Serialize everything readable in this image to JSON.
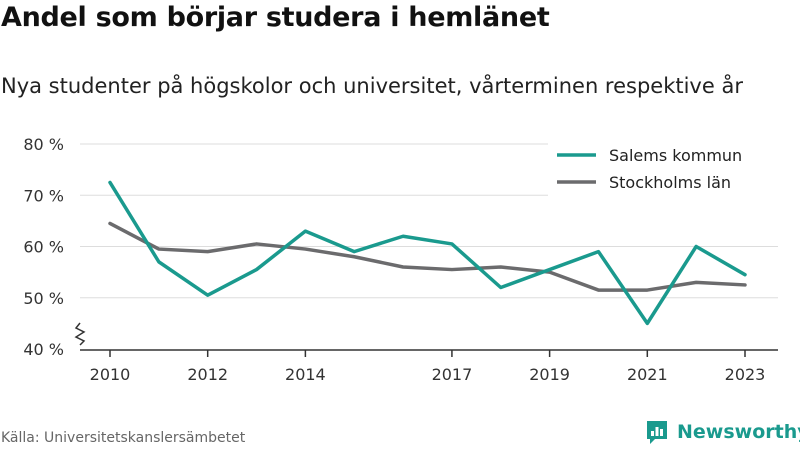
{
  "header": {
    "title": "Andel som börjar studera i hemlänet",
    "subtitle": "Nya studenter på högskolor och universitet, vårterminen respektive år"
  },
  "footer": {
    "source": "Källa: Universitetskanslersämbetet",
    "brand": "Newsworthy",
    "brand_icon": "newsworthy-logo-icon"
  },
  "colors": {
    "salem": "#1a9a8e",
    "stockholm": "#6b6b6d",
    "grid": "#dddddd",
    "axis": "#333333",
    "brand": "#1a9a8e"
  },
  "chart_data": {
    "type": "line",
    "x": [
      2010,
      2011,
      2012,
      2013,
      2014,
      2015,
      2016,
      2017,
      2018,
      2019,
      2020,
      2021,
      2022,
      2023
    ],
    "x_tick_labels": [
      "2010",
      "2012",
      "2014",
      "2017",
      "2019",
      "2021",
      "2023"
    ],
    "x_tick_values": [
      2010,
      2012,
      2014,
      2017,
      2019,
      2021,
      2023
    ],
    "y_tick_labels": [
      "80 %",
      "70 %",
      "60 %",
      "50 %",
      "40 %"
    ],
    "y_tick_values": [
      80,
      70,
      60,
      50,
      40
    ],
    "ylim": [
      40,
      80
    ],
    "y_axis_break": true,
    "grid": true,
    "legend_position": "top-right",
    "series": [
      {
        "name": "Salems kommun",
        "color": "#1a9a8e",
        "values": [
          72.5,
          57,
          50.5,
          55.5,
          63,
          59,
          62,
          60.5,
          52,
          55.5,
          59,
          45,
          60,
          54.5
        ]
      },
      {
        "name": "Stockholms län",
        "color": "#6b6b6d",
        "values": [
          64.5,
          59.5,
          59,
          60.5,
          59.5,
          58,
          56,
          55.5,
          56,
          55,
          51.5,
          51.5,
          53,
          52.5
        ]
      }
    ]
  }
}
